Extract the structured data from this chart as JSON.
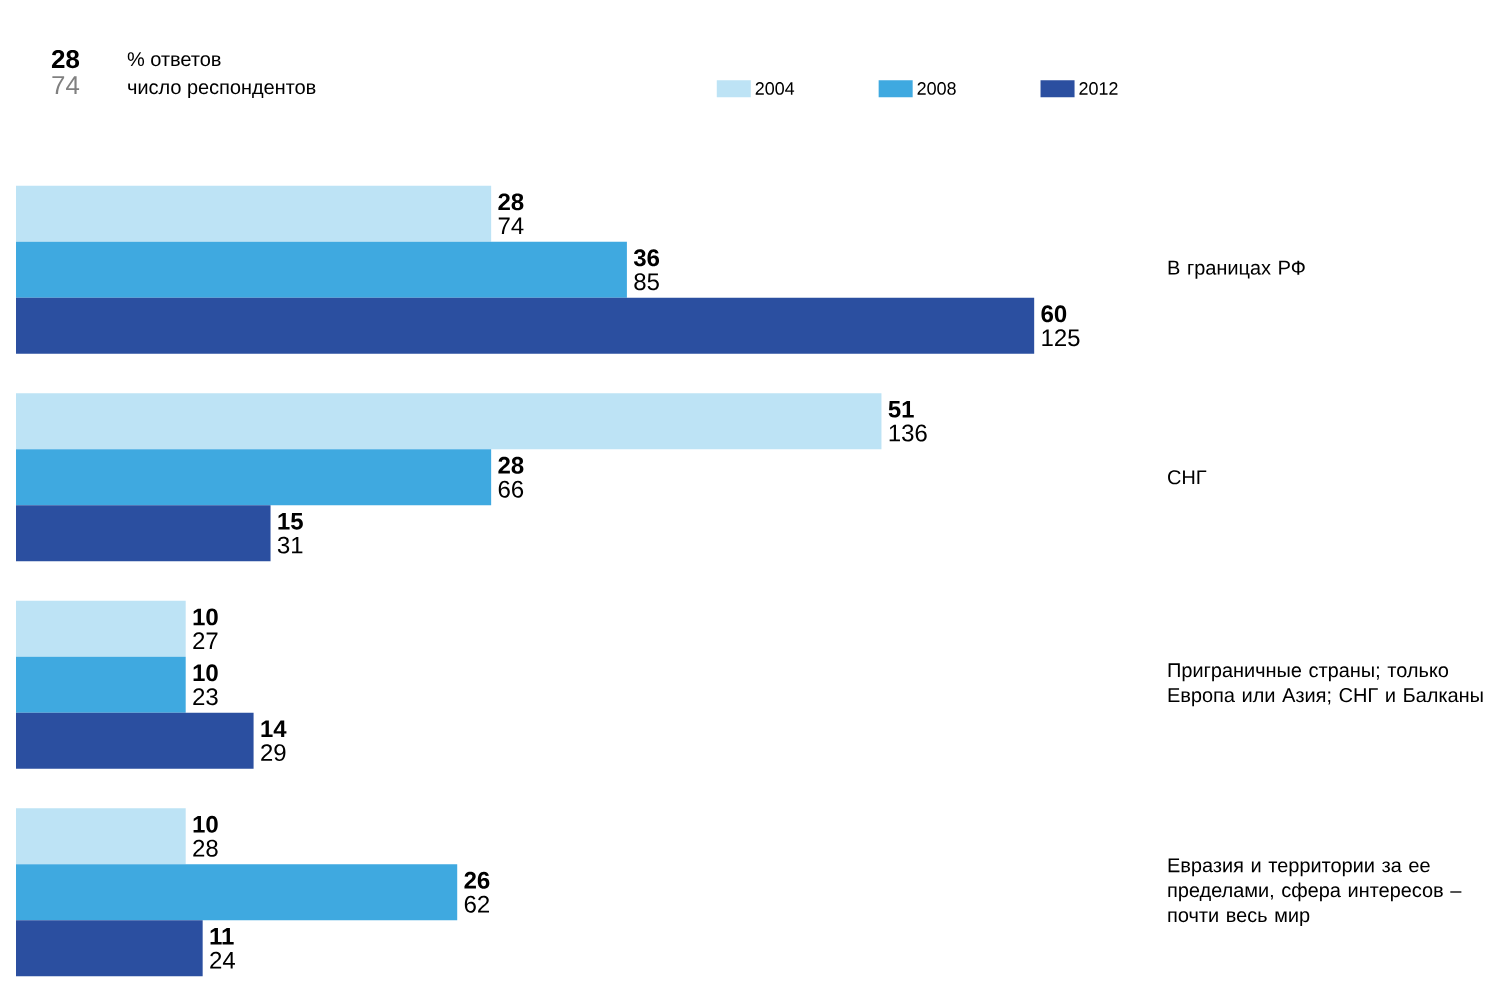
{
  "chart_data": {
    "type": "bar",
    "orientation": "horizontal",
    "categories": [
      "В границах РФ",
      "СНГ",
      "Приграничные страны; только Европа или Азия; СНГ и Балканы",
      "Евразия и территории за ее пределами, сфера интересов – почти весь мир"
    ],
    "series": [
      {
        "name": "2004",
        "color": "#bde3f5",
        "values": [
          28,
          51,
          10,
          10
        ],
        "value_labels": [
          "**28** 74",
          "**51** 136",
          "**10** 27",
          "**10** 28"
        ]
      },
      {
        "name": "2008",
        "color": "#3fa9e0",
        "values": [
          36,
          28,
          10,
          26
        ],
        "value_labels": [
          "**36** 85",
          "**28** 66",
          "**10** 23",
          "**26** 62"
        ]
      },
      {
        "name": "2012",
        "color": "#2b4fa0",
        "values": [
          60,
          15,
          14,
          11
        ],
        "value_labels": [
          "**60** 125",
          "**15** 31",
          "**14** 29",
          "**11** 24"
        ]
      }
    ],
    "legend": "top",
    "annotations": [
      "28",
      "74",
      "% ответов",
      "число респондентов"
    ]
  }
}
